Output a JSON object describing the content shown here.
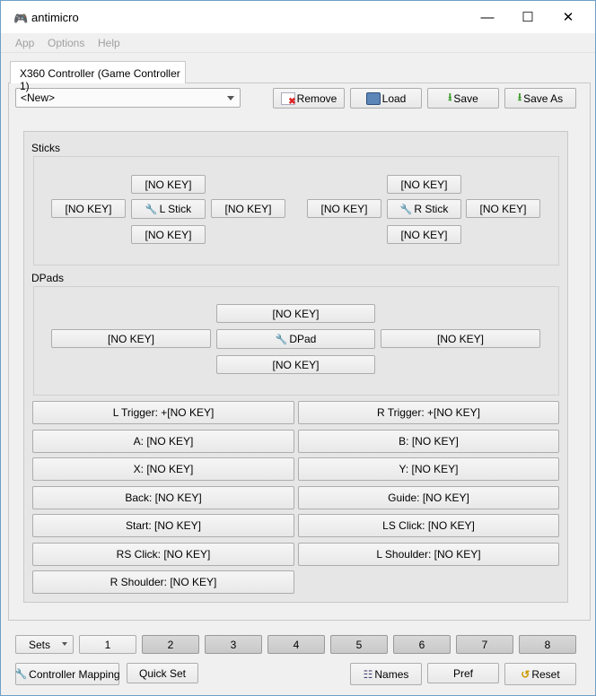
{
  "window": {
    "title": "antimicro",
    "app_icon": "gamepad-icon",
    "controls": [
      "minimize",
      "maximize",
      "close"
    ]
  },
  "menu": [
    {
      "label": "App",
      "mnemonic": "A"
    },
    {
      "label": "Options",
      "mnemonic": "O"
    },
    {
      "label": "Help",
      "mnemonic": "H"
    }
  ],
  "tab": {
    "label": "X360 Controller (Game Controller 1)"
  },
  "profile": {
    "selected": "<New>"
  },
  "toolbar": {
    "remove": "Remove",
    "load": "Load",
    "save": "Save",
    "save_as": "Save As"
  },
  "sticks": {
    "label": "Sticks",
    "left": {
      "up": "[NO KEY]",
      "left": "[NO KEY]",
      "center": "L Stick",
      "right": "[NO KEY]",
      "down": "[NO KEY]"
    },
    "right": {
      "up": "[NO KEY]",
      "left": "[NO KEY]",
      "center": "R Stick",
      "right": "[NO KEY]",
      "down": "[NO KEY]"
    }
  },
  "dpads": {
    "label": "DPads",
    "up": "[NO KEY]",
    "left": "[NO KEY]",
    "center": "DPad",
    "right": "[NO KEY]",
    "down": "[NO KEY]"
  },
  "buttons": [
    "L Trigger: +[NO KEY]",
    "R Trigger: +[NO KEY]",
    "A: [NO KEY]",
    "B: [NO KEY]",
    "X: [NO KEY]",
    "Y: [NO KEY]",
    "Back: [NO KEY]",
    "Guide: [NO KEY]",
    "Start: [NO KEY]",
    "LS Click: [NO KEY]",
    "RS Click: [NO KEY]",
    "L Shoulder: [NO KEY]",
    "R Shoulder: [NO KEY]"
  ],
  "sets": {
    "label": "Sets",
    "items": [
      "1",
      "2",
      "3",
      "4",
      "5",
      "6",
      "7",
      "8"
    ],
    "active": "1"
  },
  "bottom": {
    "controller_mapping": "Controller Mapping",
    "quick_set": "Quick Set",
    "names": "Names",
    "pref": "Pref",
    "reset": "Reset"
  }
}
